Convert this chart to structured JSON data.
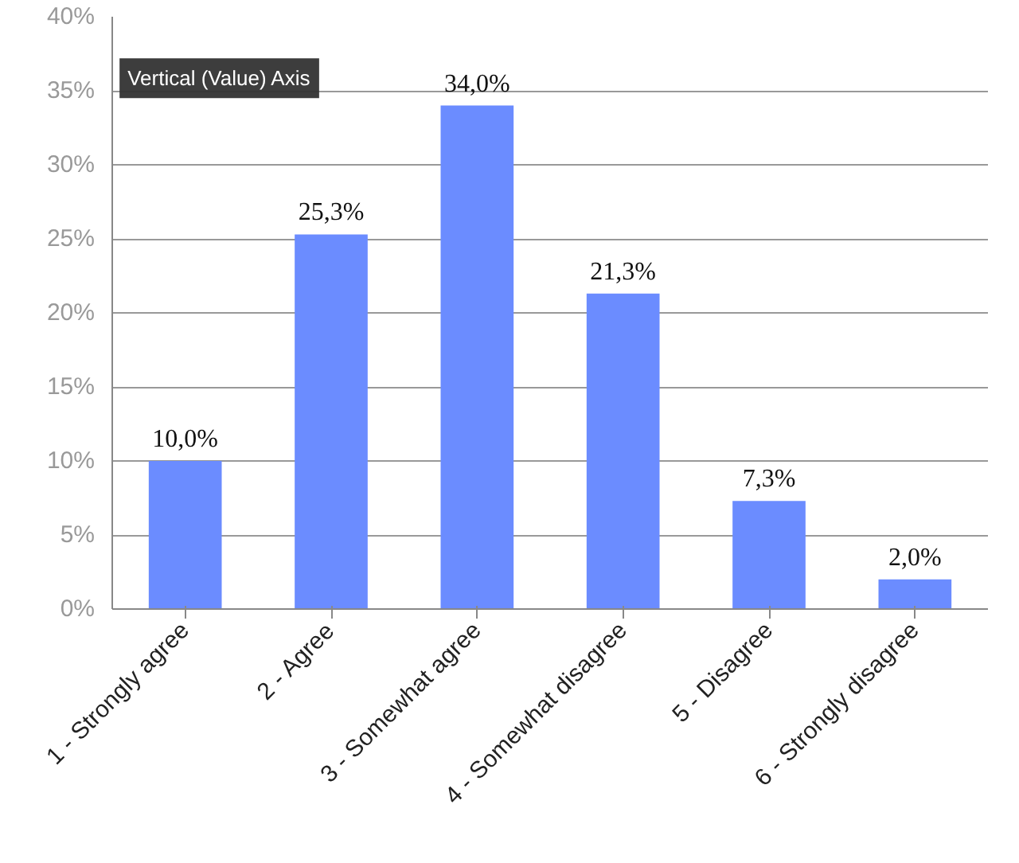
{
  "chart_data": {
    "type": "bar",
    "categories": [
      "1 - Strongly agree",
      "2 - Agree",
      "3 - Somewhat agree",
      "4 - Somewhat disagree",
      "5 - Disagree",
      "6 - Strongly disagree"
    ],
    "values": [
      10.0,
      25.3,
      34.0,
      21.3,
      7.3,
      2.0
    ],
    "value_labels": [
      "10,0%",
      "25,3%",
      "34,0%",
      "21,3%",
      "7,3%",
      "2,0%"
    ],
    "color": "#6b8cff",
    "ylim": [
      0,
      40
    ],
    "yticks": [
      {
        "value": 0,
        "label": "0%"
      },
      {
        "value": 5,
        "label": "5%"
      },
      {
        "value": 10,
        "label": "10%"
      },
      {
        "value": 15,
        "label": "15%"
      },
      {
        "value": 20,
        "label": "20%"
      },
      {
        "value": 25,
        "label": "25%"
      },
      {
        "value": 30,
        "label": "30%"
      },
      {
        "value": 35,
        "label": "35%"
      },
      {
        "value": 40,
        "label": "40%"
      }
    ],
    "grid": "y",
    "annotations": [
      "Vertical (Value) Axis"
    ]
  }
}
